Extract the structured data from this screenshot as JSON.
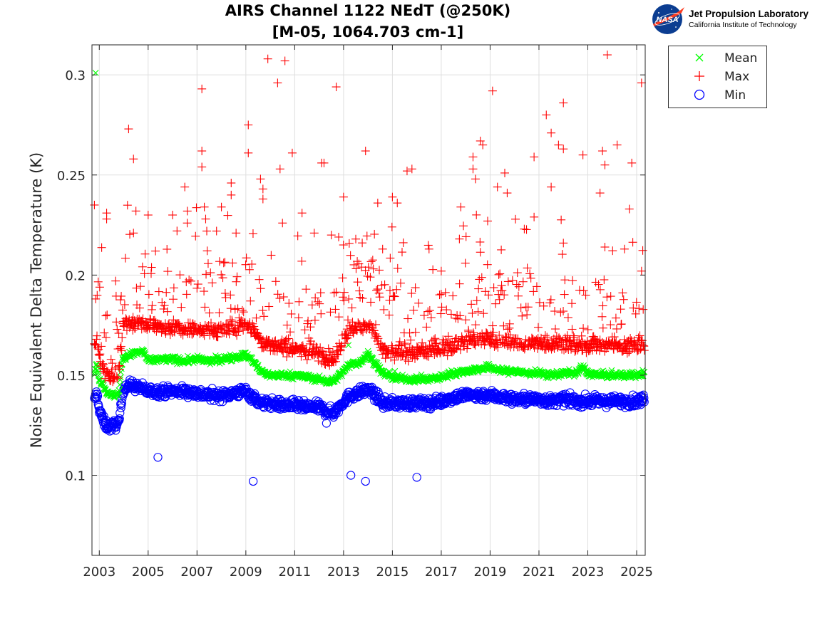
{
  "header": {
    "title_line1": "AIRS Channel 1122 NEdT (@250K)",
    "title_line2": "[M-05, 1064.703 cm-1]"
  },
  "logo": {
    "icon": "nasa-meatball-icon",
    "badge_text": "NASA",
    "line1": "Jet Propulsion Laboratory",
    "line2": "California Institute of Technology"
  },
  "chart_data": {
    "type": "scatter",
    "title": "AIRS Channel 1122 NEdT (@250K) [M-05, 1064.703 cm-1]",
    "xlabel": "",
    "ylabel": "Noise Equivalent Delta Temperature (K)",
    "xlim": [
      2002.7,
      2025.35
    ],
    "ylim": [
      0.06,
      0.315
    ],
    "x_ticks": [
      "2003",
      "2005",
      "2007",
      "2009",
      "2011",
      "2013",
      "2015",
      "2017",
      "2019",
      "2021",
      "2023",
      "2025"
    ],
    "y_ticks": [
      0.1,
      0.15,
      0.2,
      0.25,
      0.3
    ],
    "y_tick_labels": [
      "0.1",
      "0.15",
      "0.2",
      "0.25",
      "0.3"
    ],
    "grid": true,
    "legend_position": "top-right-outside",
    "series": [
      {
        "name": "Mean",
        "marker": "x",
        "color": "#00ff00",
        "x": [
          2002.8,
          2002.9,
          2003.0,
          2003.2,
          2003.4,
          2003.6,
          2003.8,
          2003.95,
          2004.2,
          2004.5,
          2004.8,
          2005.0,
          2005.5,
          2006.0,
          2006.5,
          2007.0,
          2007.5,
          2008.0,
          2008.5,
          2009.0,
          2009.3,
          2009.6,
          2010.0,
          2010.5,
          2011.0,
          2011.5,
          2012.0,
          2012.3,
          2012.6,
          2013.0,
          2013.3,
          2013.6,
          2014.0,
          2014.3,
          2014.6,
          2015.0,
          2015.5,
          2016.0,
          2016.5,
          2017.0,
          2017.5,
          2018.0,
          2018.5,
          2019.0,
          2019.5,
          2020.0,
          2020.5,
          2021.0,
          2021.5,
          2022.0,
          2022.5,
          2022.8,
          2023.0,
          2023.5,
          2024.0,
          2024.5,
          2025.0,
          2025.3
        ],
        "y": [
          0.152,
          0.156,
          0.148,
          0.144,
          0.14,
          0.14,
          0.141,
          0.158,
          0.16,
          0.161,
          0.162,
          0.157,
          0.158,
          0.158,
          0.157,
          0.158,
          0.157,
          0.158,
          0.159,
          0.16,
          0.157,
          0.152,
          0.15,
          0.15,
          0.15,
          0.149,
          0.148,
          0.147,
          0.147,
          0.152,
          0.156,
          0.156,
          0.16,
          0.156,
          0.151,
          0.149,
          0.148,
          0.148,
          0.148,
          0.149,
          0.151,
          0.152,
          0.153,
          0.154,
          0.152,
          0.152,
          0.151,
          0.151,
          0.15,
          0.151,
          0.151,
          0.154,
          0.151,
          0.15,
          0.15,
          0.15,
          0.15,
          0.151
        ]
      },
      {
        "name": "Max",
        "marker": "+",
        "color": "#ff0000",
        "x": [
          2002.8,
          2002.9,
          2003.0,
          2003.2,
          2003.4,
          2003.6,
          2003.8,
          2004.0,
          2004.3,
          2004.6,
          2005.0,
          2005.5,
          2006.0,
          2006.5,
          2007.0,
          2007.5,
          2008.0,
          2008.5,
          2009.0,
          2009.3,
          2009.6,
          2010.0,
          2010.5,
          2011.0,
          2011.5,
          2012.0,
          2012.3,
          2012.6,
          2013.0,
          2013.3,
          2013.6,
          2014.0,
          2014.3,
          2014.6,
          2015.0,
          2015.5,
          2016.0,
          2016.5,
          2017.0,
          2017.5,
          2018.0,
          2018.5,
          2019.0,
          2019.5,
          2020.0,
          2020.5,
          2021.0,
          2021.5,
          2022.0,
          2022.5,
          2023.0,
          2023.5,
          2024.0,
          2024.5,
          2025.0,
          2025.3
        ],
        "y": [
          0.165,
          0.168,
          0.16,
          0.153,
          0.15,
          0.15,
          0.152,
          0.175,
          0.176,
          0.177,
          0.176,
          0.174,
          0.174,
          0.173,
          0.173,
          0.172,
          0.173,
          0.174,
          0.176,
          0.174,
          0.167,
          0.165,
          0.164,
          0.163,
          0.162,
          0.161,
          0.159,
          0.158,
          0.168,
          0.173,
          0.174,
          0.176,
          0.17,
          0.162,
          0.161,
          0.161,
          0.161,
          0.162,
          0.163,
          0.165,
          0.167,
          0.168,
          0.168,
          0.167,
          0.166,
          0.166,
          0.166,
          0.166,
          0.166,
          0.165,
          0.165,
          0.165,
          0.165,
          0.165,
          0.165,
          0.166
        ]
      },
      {
        "name": "Min",
        "marker": "o",
        "color": "#0000ff",
        "x": [
          2002.8,
          2002.9,
          2003.0,
          2003.2,
          2003.4,
          2003.6,
          2003.8,
          2004.0,
          2004.3,
          2004.6,
          2005.0,
          2005.5,
          2006.0,
          2006.5,
          2007.0,
          2007.5,
          2008.0,
          2008.5,
          2009.0,
          2009.3,
          2009.6,
          2010.0,
          2010.5,
          2011.0,
          2011.5,
          2012.0,
          2012.3,
          2012.6,
          2013.0,
          2013.3,
          2013.6,
          2014.0,
          2014.3,
          2014.6,
          2015.0,
          2015.5,
          2016.0,
          2016.5,
          2017.0,
          2017.5,
          2018.0,
          2018.5,
          2019.0,
          2019.5,
          2020.0,
          2020.5,
          2021.0,
          2021.5,
          2022.0,
          2022.5,
          2023.0,
          2023.5,
          2024.0,
          2024.5,
          2025.0,
          2025.3
        ],
        "y": [
          0.137,
          0.141,
          0.133,
          0.126,
          0.124,
          0.125,
          0.126,
          0.144,
          0.145,
          0.144,
          0.142,
          0.142,
          0.142,
          0.142,
          0.141,
          0.14,
          0.14,
          0.141,
          0.142,
          0.139,
          0.136,
          0.136,
          0.135,
          0.135,
          0.134,
          0.134,
          0.132,
          0.131,
          0.137,
          0.14,
          0.141,
          0.143,
          0.14,
          0.136,
          0.136,
          0.136,
          0.136,
          0.136,
          0.137,
          0.139,
          0.14,
          0.14,
          0.14,
          0.139,
          0.138,
          0.138,
          0.138,
          0.137,
          0.138,
          0.137,
          0.137,
          0.137,
          0.137,
          0.137,
          0.137,
          0.138
        ]
      }
    ],
    "outliers": {
      "Mean": [
        [
          2002.85,
          0.301
        ],
        [
          2013.2,
          0.165
        ],
        [
          2014.0,
          0.162
        ],
        [
          2015.1,
          0.152
        ]
      ],
      "Max": [
        [
          2002.8,
          0.235
        ],
        [
          2003.3,
          0.231
        ],
        [
          2003.3,
          0.228
        ],
        [
          2004.2,
          0.273
        ],
        [
          2004.4,
          0.258
        ],
        [
          2004.5,
          0.232
        ],
        [
          2004.4,
          0.221
        ],
        [
          2005.0,
          0.23
        ],
        [
          2005.3,
          0.212
        ],
        [
          2006.0,
          0.23
        ],
        [
          2006.5,
          0.244
        ],
        [
          2006.6,
          0.226
        ],
        [
          2007.2,
          0.293
        ],
        [
          2007.2,
          0.262
        ],
        [
          2007.2,
          0.254
        ],
        [
          2007.3,
          0.234
        ],
        [
          2007.4,
          0.222
        ],
        [
          2007.8,
          0.222
        ],
        [
          2008.0,
          0.234
        ],
        [
          2008.4,
          0.246
        ],
        [
          2008.4,
          0.24
        ],
        [
          2008.6,
          0.221
        ],
        [
          2009.1,
          0.275
        ],
        [
          2009.1,
          0.261
        ],
        [
          2009.6,
          0.248
        ],
        [
          2009.7,
          0.243
        ],
        [
          2009.7,
          0.238
        ],
        [
          2009.9,
          0.308
        ],
        [
          2010.3,
          0.296
        ],
        [
          2010.6,
          0.307
        ],
        [
          2010.4,
          0.253
        ],
        [
          2010.5,
          0.226
        ],
        [
          2010.9,
          0.261
        ],
        [
          2011.3,
          0.231
        ],
        [
          2011.8,
          0.221
        ],
        [
          2012.1,
          0.256
        ],
        [
          2012.2,
          0.256
        ],
        [
          2012.5,
          0.22
        ],
        [
          2012.8,
          0.219
        ],
        [
          2012.7,
          0.294
        ],
        [
          2013.0,
          0.239
        ],
        [
          2013.5,
          0.218
        ],
        [
          2013.9,
          0.262
        ],
        [
          2014.4,
          0.236
        ],
        [
          2014.6,
          0.213
        ],
        [
          2015.0,
          0.239
        ],
        [
          2015.2,
          0.236
        ],
        [
          2015.6,
          0.252
        ],
        [
          2015.8,
          0.253
        ],
        [
          2016.5,
          0.213
        ],
        [
          2017.0,
          0.202
        ],
        [
          2017.8,
          0.234
        ],
        [
          2018.3,
          0.259
        ],
        [
          2018.3,
          0.253
        ],
        [
          2018.4,
          0.248
        ],
        [
          2018.6,
          0.267
        ],
        [
          2018.7,
          0.265
        ],
        [
          2018.9,
          0.227
        ],
        [
          2019.1,
          0.292
        ],
        [
          2019.3,
          0.244
        ],
        [
          2019.6,
          0.251
        ],
        [
          2019.7,
          0.241
        ],
        [
          2020.4,
          0.223
        ],
        [
          2020.8,
          0.259
        ],
        [
          2020.8,
          0.229
        ],
        [
          2021.3,
          0.28
        ],
        [
          2021.5,
          0.271
        ],
        [
          2021.5,
          0.244
        ],
        [
          2021.8,
          0.265
        ],
        [
          2022.0,
          0.286
        ],
        [
          2022.0,
          0.263
        ],
        [
          2022.0,
          0.216
        ],
        [
          2022.8,
          0.26
        ],
        [
          2023.5,
          0.241
        ],
        [
          2023.6,
          0.262
        ],
        [
          2023.7,
          0.255
        ],
        [
          2023.8,
          0.31
        ],
        [
          2023.7,
          0.214
        ],
        [
          2024.2,
          0.265
        ],
        [
          2024.5,
          0.213
        ],
        [
          2024.8,
          0.256
        ],
        [
          2024.7,
          0.233
        ],
        [
          2025.2,
          0.296
        ],
        [
          2025.2,
          0.202
        ]
      ],
      "Min": [
        [
          2005.4,
          0.109
        ],
        [
          2009.3,
          0.097
        ],
        [
          2013.3,
          0.1
        ],
        [
          2013.9,
          0.097
        ],
        [
          2016.0,
          0.099
        ],
        [
          2012.3,
          0.126
        ]
      ]
    }
  },
  "legend": {
    "items": [
      {
        "label": "Mean",
        "color": "#00ff00"
      },
      {
        "label": "Max",
        "color": "#ff0000"
      },
      {
        "label": "Min",
        "color": "#0000ff"
      }
    ]
  }
}
